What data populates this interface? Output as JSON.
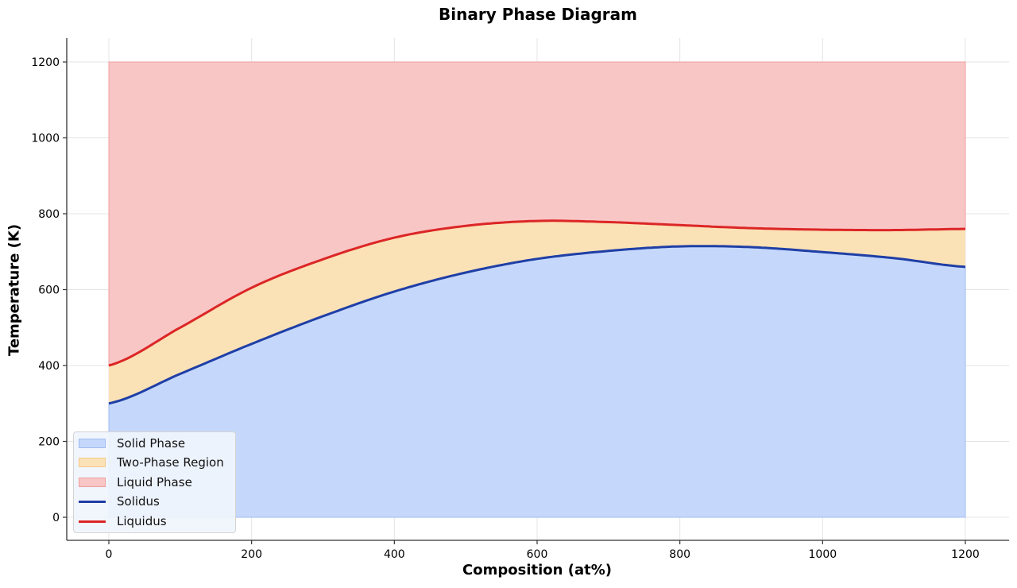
{
  "chart_data": {
    "type": "area",
    "title": "Binary Phase Diagram",
    "xlabel": "Composition (at%)",
    "ylabel": "Temperature (K)",
    "xlim": [
      -60,
      1260
    ],
    "ylim": [
      -60,
      1260
    ],
    "xticks": [
      0,
      200,
      400,
      600,
      800,
      1000,
      1200
    ],
    "yticks": [
      0,
      200,
      400,
      600,
      800,
      1000,
      1200
    ],
    "grid": true,
    "legend_position": "lower left",
    "x": [
      0,
      100,
      200,
      300,
      400,
      500,
      600,
      700,
      800,
      900,
      1000,
      1100,
      1200
    ],
    "series": [
      {
        "name": "Solidus",
        "kind": "line",
        "color": "#1f3fa6",
        "values": [
          300,
          378,
          457,
          530,
          595,
          645,
          681,
          702,
          714,
          712,
          699,
          683,
          660
        ]
      },
      {
        "name": "Liquidus",
        "kind": "line",
        "color": "#dc2626",
        "values": [
          400,
          500,
          605,
          680,
          737,
          768,
          781,
          778,
          770,
          762,
          758,
          757,
          760
        ]
      }
    ],
    "regions": [
      {
        "name": "Solid Phase",
        "fill": "#c5d8fb",
        "edge": "#9fbbef",
        "from": "0",
        "to": "Solidus"
      },
      {
        "name": "Two-Phase Region",
        "fill": "#fbe1b6",
        "edge": "#f5c98a",
        "from": "Solidus",
        "to": "Liquidus"
      },
      {
        "name": "Liquid Phase",
        "fill": "#f9c6c6",
        "edge": "#ef9f9f",
        "from": "Liquidus",
        "to": "1200"
      }
    ]
  },
  "legend": {
    "items": [
      {
        "label": "Solid Phase",
        "type": "patch",
        "color": "#c5d8fb",
        "edge": "#9fbbef"
      },
      {
        "label": "Two-Phase Region",
        "type": "patch",
        "color": "#fbe1b6",
        "edge": "#f5c98a"
      },
      {
        "label": "Liquid Phase",
        "type": "patch",
        "color": "#f9c6c6",
        "edge": "#ef9f9f"
      },
      {
        "label": "Solidus",
        "type": "line",
        "color": "#1f3fa6"
      },
      {
        "label": "Liquidus",
        "type": "line",
        "color": "#dc2626"
      }
    ]
  }
}
